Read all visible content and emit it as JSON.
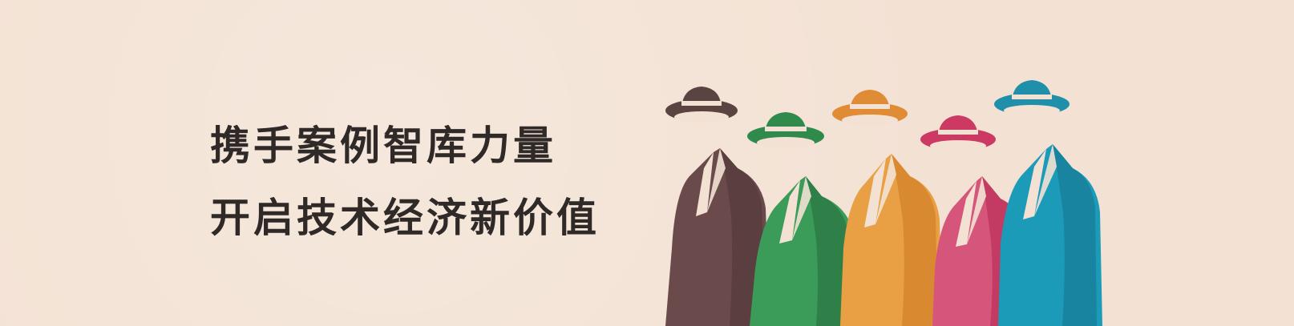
{
  "banner": {
    "slogan_line_1": "携手案例智库力量",
    "slogan_line_2": "开启技术经济新价值",
    "background_color": "#f3e2d4",
    "text_color": "#2f2a28"
  },
  "figures": [
    {
      "name": "brown-figure",
      "color": "#6b4a4c",
      "shade": "#5a3e40",
      "hat": "#5a4340"
    },
    {
      "name": "green-figure",
      "color": "#3b9c59",
      "shade": "#2f8048",
      "hat": "#2f8a4c"
    },
    {
      "name": "orange-figure",
      "color": "#e9a045",
      "shade": "#d98a30",
      "hat": "#e08b35"
    },
    {
      "name": "pink-figure",
      "color": "#d6557b",
      "shade": "#c33a63",
      "hat": "#cc3a64"
    },
    {
      "name": "teal-figure",
      "color": "#1c9bb9",
      "shade": "#1884a0",
      "hat": "#1f8faa"
    }
  ]
}
